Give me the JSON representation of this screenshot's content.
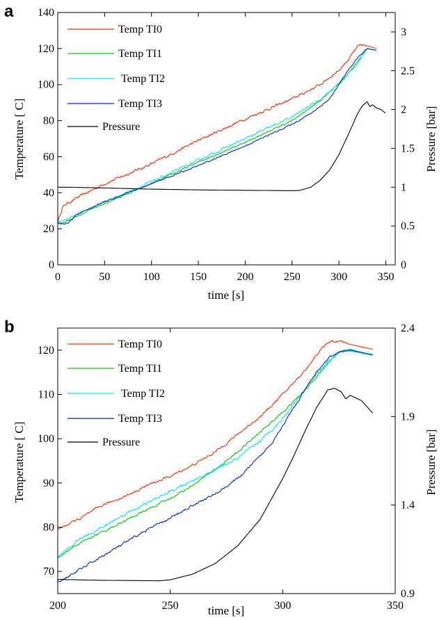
{
  "chart_data": [
    {
      "panel": "a",
      "type": "line",
      "xlabel": "time [s]",
      "ylabel": "Temperature [ C]",
      "y2label": "Pressure [bar]",
      "xlim": [
        0,
        360
      ],
      "ylim": [
        0,
        140
      ],
      "y2lim": [
        0,
        3.25
      ],
      "xticks": [
        0,
        50,
        100,
        150,
        200,
        250,
        300,
        350
      ],
      "yticks": [
        0,
        20,
        40,
        60,
        80,
        100,
        120,
        140
      ],
      "y2ticks": [
        0,
        0.5,
        1,
        1.5,
        2,
        2.5,
        3
      ],
      "legend_position": "top-left",
      "grid": false,
      "series": [
        {
          "name": "Temp TI0",
          "color": "#ff2a00",
          "axis": "left",
          "noise": 1.4,
          "x": [
            0,
            2,
            5,
            10,
            20,
            50,
            100,
            150,
            200,
            250,
            280,
            300,
            310,
            320,
            325,
            330,
            340
          ],
          "y": [
            24,
            27,
            32,
            34,
            37,
            45,
            56,
            69,
            81,
            92,
            100,
            108,
            114,
            121,
            122,
            121.5,
            120
          ]
        },
        {
          "name": "Temp TI1",
          "color": "#00cc00",
          "axis": "left",
          "noise": 0.8,
          "x": [
            0,
            5,
            10,
            20,
            50,
            100,
            150,
            200,
            250,
            280,
            300,
            310,
            320,
            330,
            340
          ],
          "y": [
            23,
            23.5,
            24.5,
            27,
            34,
            45,
            57,
            68,
            80,
            91,
            101,
            106,
            113,
            120,
            119
          ]
        },
        {
          "name": "Temp TI2",
          "color": "#00e5ff",
          "axis": "left",
          "noise": 1.2,
          "x": [
            0,
            5,
            10,
            20,
            50,
            100,
            150,
            200,
            250,
            280,
            300,
            310,
            320,
            330,
            340
          ],
          "y": [
            24,
            24,
            25.5,
            28,
            35,
            46,
            58,
            70,
            82,
            92,
            100,
            106,
            112,
            120,
            119
          ]
        },
        {
          "name": "Temp TI3",
          "color": "#0022dd",
          "axis": "left",
          "noise": 0.7,
          "x": [
            0,
            10,
            15,
            20,
            50,
            100,
            150,
            200,
            250,
            270,
            290,
            300,
            310,
            320,
            330,
            340
          ],
          "y": [
            23,
            23,
            25,
            28,
            35,
            45,
            55,
            66,
            78,
            84,
            92,
            100,
            108,
            115,
            120,
            119
          ]
        },
        {
          "name": "Pressure",
          "color": "#000000",
          "axis": "right",
          "noise": 0,
          "x": [
            0,
            10,
            50,
            100,
            150,
            200,
            250,
            258,
            270,
            280,
            290,
            300,
            310,
            320,
            325,
            330,
            333,
            336,
            340,
            345,
            350
          ],
          "y": [
            1.0,
            1.0,
            0.99,
            0.975,
            0.965,
            0.96,
            0.955,
            0.958,
            1.0,
            1.09,
            1.22,
            1.42,
            1.68,
            1.95,
            2.05,
            2.1,
            2.04,
            2.06,
            2.02,
            2.0,
            1.95
          ]
        }
      ]
    },
    {
      "panel": "b",
      "type": "line",
      "xlabel": "time [s]",
      "ylabel": "Temperature [ C]",
      "y2label": "Pressure [bar]",
      "xlim": [
        200,
        350
      ],
      "ylim": [
        65,
        125
      ],
      "y2lim": [
        0.9,
        2.4
      ],
      "xticks": [
        200,
        250,
        300,
        350
      ],
      "yticks": [
        70,
        80,
        90,
        100,
        110,
        120
      ],
      "y2ticks": [
        0.9,
        1.4,
        1.9,
        2.4
      ],
      "legend_position": "top-left",
      "grid": false,
      "series": [
        {
          "name": "Temp TI0",
          "color": "#ff2a00",
          "axis": "left",
          "noise": 0.5,
          "x": [
            200,
            210,
            220,
            230,
            240,
            250,
            260,
            270,
            280,
            290,
            300,
            310,
            315,
            320,
            325,
            330,
            340
          ],
          "y": [
            79.5,
            82,
            85,
            87,
            89.5,
            91.5,
            94,
            97,
            101,
            105,
            110,
            115.5,
            119,
            121.8,
            122,
            121.3,
            120.2
          ]
        },
        {
          "name": "Temp TI1",
          "color": "#00cc00",
          "axis": "left",
          "noise": 0.45,
          "x": [
            200,
            210,
            220,
            230,
            240,
            250,
            260,
            270,
            280,
            290,
            300,
            305,
            310,
            315,
            320,
            325,
            330,
            340
          ],
          "y": [
            73,
            76.5,
            79,
            81.5,
            84,
            86.5,
            89.5,
            93,
            97,
            101.5,
            106,
            108.5,
            111,
            114,
            117,
            119.5,
            120.2,
            118.8
          ]
        },
        {
          "name": "Temp TI2",
          "color": "#00e5ff",
          "axis": "left",
          "noise": 0.6,
          "x": [
            200,
            210,
            220,
            230,
            240,
            250,
            260,
            270,
            280,
            290,
            300,
            305,
            310,
            315,
            320,
            325,
            330,
            340
          ],
          "y": [
            73,
            77.5,
            80,
            83,
            85.5,
            88,
            90.5,
            93,
            95.5,
            99.5,
            104.5,
            108,
            111.5,
            114.5,
            117.5,
            119.5,
            119.8,
            118.8
          ]
        },
        {
          "name": "Temp TI3",
          "color": "#0022dd",
          "axis": "left",
          "noise": 0.5,
          "x": [
            200,
            210,
            220,
            230,
            240,
            250,
            260,
            270,
            280,
            285,
            290,
            295,
            300,
            305,
            310,
            315,
            320,
            325,
            330,
            340
          ],
          "y": [
            67.5,
            70.5,
            73.5,
            76.5,
            79.5,
            82,
            85,
            87.5,
            91,
            93.5,
            96,
            99,
            103,
            107,
            111,
            115,
            118,
            119.7,
            120,
            119
          ]
        },
        {
          "name": "Pressure",
          "color": "#000000",
          "axis": "right",
          "noise": 0,
          "x": [
            200,
            220,
            240,
            245,
            250,
            260,
            270,
            280,
            290,
            300,
            305,
            310,
            315,
            320,
            323,
            326,
            328,
            330,
            335,
            340
          ],
          "y": [
            0.98,
            0.975,
            0.973,
            0.972,
            0.978,
            1.01,
            1.07,
            1.17,
            1.32,
            1.55,
            1.68,
            1.82,
            1.95,
            2.05,
            2.06,
            2.04,
            2.0,
            2.02,
            1.99,
            1.92
          ]
        }
      ]
    }
  ]
}
